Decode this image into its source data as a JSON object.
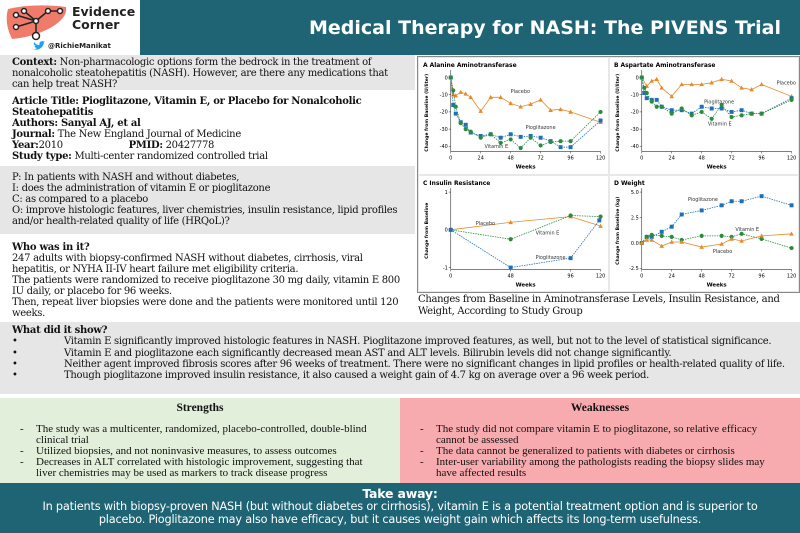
{
  "brand": {
    "name_line1": "Evidence",
    "name_line2": "Corner",
    "handle": "@RichieManikat",
    "logo_color": "#f07b6a",
    "twitter_color": "#1da1f2"
  },
  "header": {
    "title": "Medical Therapy for NASH: The PIVENS Trial",
    "color": "#1e6475"
  },
  "context": {
    "label": "Context:",
    "text": " Non-pharmacologic options form the bedrock in the treatment of nonalcoholic steatohepatitis (NASH).  However, are there any medications that can help treat NASH?"
  },
  "article": {
    "title_label": "Article Title:",
    "title": " Pioglitazone, Vitamin E, or Placebo for Nonalcoholic Steatohepatitis",
    "authors_label": "Authors:",
    "authors": " Sanyal AJ, et al",
    "journal_label": "Journal:",
    "journal": "  The New England Journal of Medicine",
    "year_label": "Year:",
    "year": " 2010",
    "pmid_label": "PMID:",
    "pmid": "  20427778",
    "type_label": "Study type:",
    "type": " Multi-center randomized controlled trial"
  },
  "pico": [
    {
      "k": "P:",
      "v": "  In patients with NASH and without diabetes,"
    },
    {
      "k": "I:",
      "v": "   does the administration of vitamin E or pioglitazone"
    },
    {
      "k": "C:",
      "v": "  as compared to a placebo"
    },
    {
      "k": "O:",
      "v": "  improve histologic features, liver chemistries, insulin resistance, lipid profiles and/or health-related quality of life (HRQoL)?"
    }
  ],
  "who": {
    "heading": "Who was in it?",
    "lines": [
      "247 adults with biopsy-confirmed NASH without diabetes, cirrhosis, viral hepatitis, or NYHA II-IV heart failure met eligibility criteria.",
      "The patients were randomized to receive pioglitazone 30 mg daily, vitamin E 800 IU daily, or placebo for 96 weeks.",
      "Then, repeat liver biopsies were done and the patients were monitored until 120 weeks."
    ]
  },
  "figure_caption": "Changes from Baseline in Aminotransferase Levels, Insulin Resistance, and Weight, According to Study Group",
  "show": {
    "heading": "What did it show?",
    "bullet": "•",
    "items": [
      "Vitamin E significantly improved histologic features in NASH.  Pioglitazone improved features, as well, but not to the level of statistical significance.",
      "Vitamin E and pioglitazone each significantly decreased mean AST and ALT levels.  Bilirubin levels did not change significantly.",
      "Neither agent improved fibrosis scores after 96 weeks of treatment. There were no significant changes in lipid profiles or health-related quality of life.",
      "Though pioglitazone improved insulin resistance, it also caused a weight gain of 4.7 kg on average over a 96 week period."
    ]
  },
  "strengths": {
    "heading": "Strengths",
    "color": "#e2efda",
    "items": [
      {
        "d": "-",
        "t": "The study was a multicenter, randomized, placebo-controlled, double-blind clinical trial"
      },
      {
        "d": "-",
        "t": "Utilized biopsies, and not noninvasive measures, to assess outcomes"
      },
      {
        "d": "-",
        "t": "Decreases in ALT correlated with histologic improvement, suggesting that liver chemistries may be used as markers to track disease progress"
      }
    ]
  },
  "weaknesses": {
    "heading": "Weaknesses",
    "color": "#f8abaf",
    "items": [
      {
        "d": "-",
        "t": "The study did not compare vitamin E to pioglitazone, so relative efficacy cannot be assessed"
      },
      {
        "d": "-",
        "t": "The data cannot be generalized to patients with diabetes or cirrhosis"
      },
      {
        "d": "-",
        "t": "Inter-user variability among the pathologists reading the biopsy slides may have affected results"
      }
    ]
  },
  "takeaway": {
    "heading": "Take away:",
    "text": "In patients with biopsy-proven NASH (but without diabetes or cirrhosis), vitamin E is a potential treatment option and is superior to placebo.  Pioglitazone may also have efficacy, but it causes weight gain which affects its long-term usefulness."
  },
  "chart_data": [
    {
      "type": "line",
      "panel": "A",
      "title": "Alanine Aminotransferase",
      "xlabel": "Weeks",
      "ylabel": "Change from Baseline (U/liter)",
      "xlim": [
        0,
        120
      ],
      "ylim": [
        -43,
        2
      ],
      "xticks": [
        0,
        24,
        48,
        72,
        96,
        120
      ],
      "yticks": [
        0,
        -10,
        -20,
        -30,
        -40
      ],
      "series": [
        {
          "name": "Placebo",
          "color": "#e8892a",
          "marker": "triangle",
          "x": [
            0,
            2,
            4,
            8,
            12,
            16,
            24,
            32,
            40,
            48,
            56,
            64,
            72,
            80,
            88,
            96,
            120
          ],
          "y": [
            0,
            -10,
            -10.5,
            -8.5,
            -9.5,
            -11.5,
            -19.5,
            -11.5,
            -11.5,
            -15,
            -17,
            -15.5,
            -13,
            -19,
            -18.5,
            -20,
            -26
          ]
        },
        {
          "name": "Pioglitazone",
          "color": "#1f6fb5",
          "marker": "square",
          "x": [
            0,
            2,
            4,
            8,
            12,
            16,
            24,
            32,
            40,
            48,
            56,
            64,
            72,
            80,
            88,
            96,
            120
          ],
          "y": [
            0,
            -16,
            -21,
            -26,
            -27.5,
            -32,
            -34,
            -33,
            -35,
            -33,
            -34.5,
            -34,
            -35,
            -37,
            -40.5,
            -40.5,
            -25
          ]
        },
        {
          "name": "Vitamin E",
          "color": "#2a8a3e",
          "marker": "circle",
          "x": [
            0,
            2,
            4,
            8,
            12,
            16,
            24,
            32,
            40,
            48,
            56,
            64,
            72,
            80,
            88,
            96,
            120
          ],
          "y": [
            0,
            -7.5,
            -17,
            -26.5,
            -30,
            -31.5,
            -35,
            -33,
            -38,
            -36,
            -41,
            -35,
            -39.5,
            -37.5,
            -37,
            -37,
            -20
          ]
        }
      ]
    },
    {
      "type": "line",
      "panel": "B",
      "title": "Aspartate Aminotransferase",
      "xlabel": "Weeks",
      "ylabel": "Change from Baseline (U/liter)",
      "xlim": [
        0,
        120
      ],
      "ylim": [
        -43,
        2
      ],
      "xticks": [
        0,
        24,
        48,
        72,
        96,
        120
      ],
      "yticks": [
        0,
        -10,
        -20,
        -30,
        -40
      ],
      "series": [
        {
          "name": "Placebo",
          "color": "#e8892a",
          "marker": "triangle",
          "x": [
            0,
            4,
            8,
            12,
            16,
            24,
            32,
            40,
            48,
            56,
            64,
            72,
            80,
            88,
            96,
            120
          ],
          "y": [
            0,
            -5,
            -2,
            -1,
            -6,
            -11,
            -4,
            -4,
            -4,
            -3,
            -1,
            -2,
            -6,
            -7,
            -4,
            -11
          ]
        },
        {
          "name": "Pioglitazone",
          "color": "#1f6fb5",
          "marker": "square",
          "x": [
            0,
            2,
            4,
            8,
            12,
            16,
            24,
            32,
            40,
            48,
            56,
            64,
            72,
            80,
            88,
            96,
            120
          ],
          "y": [
            0,
            -9,
            -12,
            -13,
            -13,
            -17,
            -19,
            -19,
            -21,
            -17,
            -18,
            -18,
            -20,
            -19,
            -21,
            -21,
            -12
          ]
        },
        {
          "name": "Vitamin E",
          "color": "#2a8a3e",
          "marker": "circle",
          "x": [
            0,
            2,
            4,
            8,
            12,
            16,
            24,
            32,
            40,
            48,
            56,
            64,
            72,
            80,
            88,
            96,
            120
          ],
          "y": [
            0,
            -6,
            -9,
            -14,
            -17,
            -17,
            -21,
            -18,
            -22,
            -20,
            -24,
            -16,
            -23,
            -22,
            -21,
            -21,
            -13
          ]
        }
      ]
    },
    {
      "type": "line",
      "panel": "C",
      "title": "Insulin Resistance",
      "xlabel": "Weeks",
      "ylabel": "Change from Baseline",
      "xlim": [
        0,
        120
      ],
      "ylim": [
        -1.05,
        1
      ],
      "xticks": [
        0,
        48,
        96,
        120
      ],
      "yticks": [
        1,
        0,
        -1
      ],
      "series": [
        {
          "name": "Placebo",
          "color": "#e8892a",
          "marker": "triangle",
          "x": [
            0,
            48,
            96,
            120
          ],
          "y": [
            0,
            0.2,
            0.35,
            0.1
          ]
        },
        {
          "name": "Vitamin E",
          "color": "#2a8a3e",
          "marker": "circle",
          "x": [
            0,
            48,
            96,
            120
          ],
          "y": [
            0,
            -0.25,
            0.38,
            0.35
          ]
        },
        {
          "name": "Pioglitazone",
          "color": "#1f6fb5",
          "marker": "square",
          "x": [
            0,
            48,
            96,
            119
          ],
          "y": [
            0,
            -1,
            -0.75,
            0.25
          ]
        }
      ]
    },
    {
      "type": "line",
      "panel": "D",
      "title": "Weight",
      "xlabel": "Weeks",
      "ylabel": "Change from Baseline (kg)",
      "xlim": [
        0,
        120
      ],
      "ylim": [
        -2.6,
        5
      ],
      "xticks": [
        0,
        24,
        48,
        72,
        96,
        120
      ],
      "yticks": [
        5.0,
        2.5,
        0.0,
        -2.5
      ],
      "series": [
        {
          "name": "Pioglitazone",
          "color": "#1f6fb5",
          "marker": "square",
          "x": [
            0,
            4,
            8,
            16,
            24,
            32,
            48,
            64,
            72,
            80,
            96,
            120
          ],
          "y": [
            0,
            0.6,
            0.6,
            1.1,
            1.6,
            2.8,
            3.2,
            3.7,
            4.1,
            4.1,
            4.6,
            3.7
          ]
        },
        {
          "name": "Vitamin E",
          "color": "#2a8a3e",
          "marker": "circle",
          "x": [
            0,
            4,
            8,
            16,
            24,
            32,
            48,
            64,
            72,
            80,
            96,
            120
          ],
          "y": [
            0,
            0.6,
            0.8,
            0.7,
            0.6,
            0.3,
            0.7,
            0.7,
            0.6,
            0.9,
            0.4,
            -0.5
          ]
        },
        {
          "name": "Placebo",
          "color": "#e8892a",
          "marker": "triangle",
          "x": [
            0,
            4,
            8,
            16,
            24,
            32,
            48,
            64,
            72,
            80,
            96,
            120
          ],
          "y": [
            0,
            0.3,
            0.3,
            -0.3,
            0.1,
            0.1,
            -0.4,
            -0.1,
            0.4,
            0.2,
            0.7,
            0.9
          ]
        }
      ]
    }
  ]
}
